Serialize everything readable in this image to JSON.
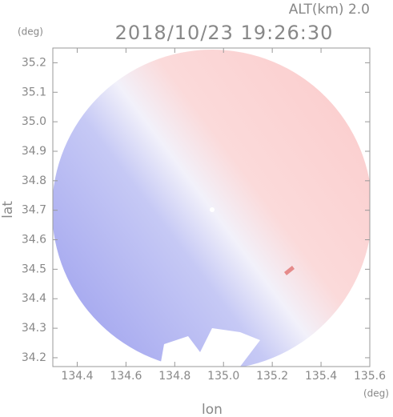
{
  "chart_data": {
    "type": "radar_map",
    "annotation": "ALT(km) 2.0",
    "title": "2018/10/23 19:26:30",
    "xlabel": "lon",
    "ylabel": "lat",
    "xunit": "(deg)",
    "yunit": "(deg)",
    "xlim": [
      134.3,
      135.6
    ],
    "ylim": [
      34.17,
      35.25
    ],
    "xticks": [
      134.4,
      134.6,
      134.8,
      {
        "value": 135.0,
        "label": "135.0"
      },
      135.2,
      135.4,
      135.6
    ],
    "yticks": [
      34.2,
      34.3,
      34.4,
      34.5,
      34.6,
      34.7,
      34.8,
      34.9,
      {
        "value": 35.0,
        "label": "35.0"
      },
      35.1,
      35.2
    ]
  }
}
